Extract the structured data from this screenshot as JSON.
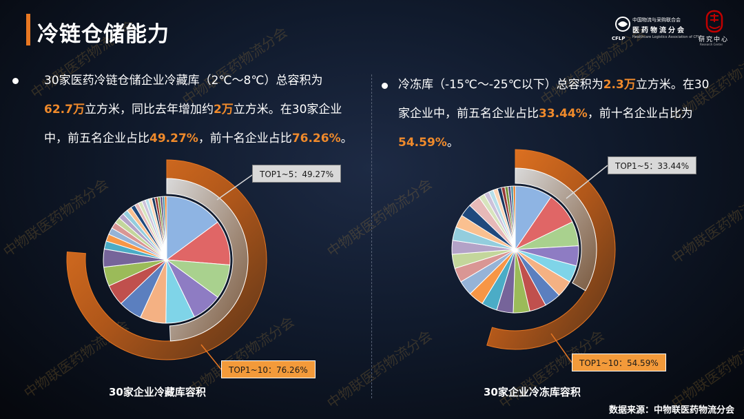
{
  "title": "冷链仓储能力",
  "logo": {
    "line1": "中国物流与采购联合会",
    "line2": "医药物流分会",
    "line3": "Healthcare Logistics Association of CFLP",
    "cflp": "CFLP",
    "brand2_cn": "研究中心",
    "brand2_en": "Research Center"
  },
  "left_text": {
    "l1": "30家医药冷链仓储企业冷藏库（2℃～8℃）总容积为",
    "l2_hl1": "62.7万",
    "l2_mid": "立方米，同比去年增加约",
    "l2_hl2": "2万",
    "l2_end": "立方米。在30家企业",
    "l3_pre": "中，前五名企业占比",
    "l3_hl1": "49.27%",
    "l3_mid": "，前十名企业占比",
    "l3_hl2": "76.26%",
    "l3_end": "。"
  },
  "right_text": {
    "l1_pre": "冷冻库（-15℃～-25℃以下）总容积为",
    "l1_hl": "2.3万",
    "l1_end": "立方米。在30",
    "l2_pre": "家企业中，前五名企业占比",
    "l2_hl": "33.44%",
    "l2_end": "，前十名企业占比为",
    "l3_hl": "54.59%",
    "l3_end": "。"
  },
  "source": "数据来源：中物联医药物流分会",
  "watermark": "中物联医药物流分会",
  "colors": {
    "accent": "#e87722",
    "highlight": "#f08a2b",
    "slices": [
      "#8eb4e3",
      "#e06666",
      "#a9d18e",
      "#8e7cc3",
      "#7fd4e8",
      "#f4b183",
      "#5b7fbf",
      "#c0504d",
      "#9bbb59",
      "#76649a",
      "#4bacc6",
      "#f79646",
      "#95b3d7",
      "#d99694",
      "#c3d69b",
      "#b3a2c7",
      "#93cddd",
      "#fac090",
      "#1f497d",
      "#e6b9b8",
      "#d7e4bd",
      "#ccc1da",
      "#b7dee8",
      "#fcd5b5",
      "#17375e",
      "#953735",
      "#77933c",
      "#604a7b",
      "#31859c",
      "#e46c0a"
    ]
  },
  "chart_data": [
    {
      "type": "pie",
      "title": "30家企业冷藏库容积",
      "top5_label": "TOP1~5：49.27%",
      "top10_label": "TOP1~10：76.26%",
      "top5_share": 49.27,
      "top10_share": 76.26,
      "values": [
        14.6,
        11.2,
        8.6,
        7.6,
        7.27,
        6.5,
        5.9,
        5.3,
        4.8,
        4.49,
        2.0,
        1.8,
        1.7,
        1.6,
        1.5,
        1.4,
        1.3,
        1.2,
        1.1,
        1.0,
        0.95,
        0.9,
        0.85,
        0.8,
        0.75,
        0.7,
        0.65,
        0.6,
        0.55,
        0.5
      ]
    },
    {
      "type": "pie",
      "title": "30家企业冷冻库容积",
      "top5_label": "TOP1~5：33.44%",
      "top10_label": "TOP1~10：54.59%",
      "top5_share": 33.44,
      "top10_share": 54.59,
      "values": [
        9.5,
        8.3,
        6.2,
        5.1,
        4.34,
        4.3,
        4.2,
        4.25,
        4.2,
        4.2,
        4.0,
        3.9,
        3.8,
        3.7,
        3.6,
        3.5,
        3.4,
        3.3,
        3.2,
        3.1,
        1.5,
        1.3,
        1.2,
        1.1,
        1.0,
        0.9,
        0.8,
        0.7,
        0.6,
        0.54
      ]
    }
  ]
}
